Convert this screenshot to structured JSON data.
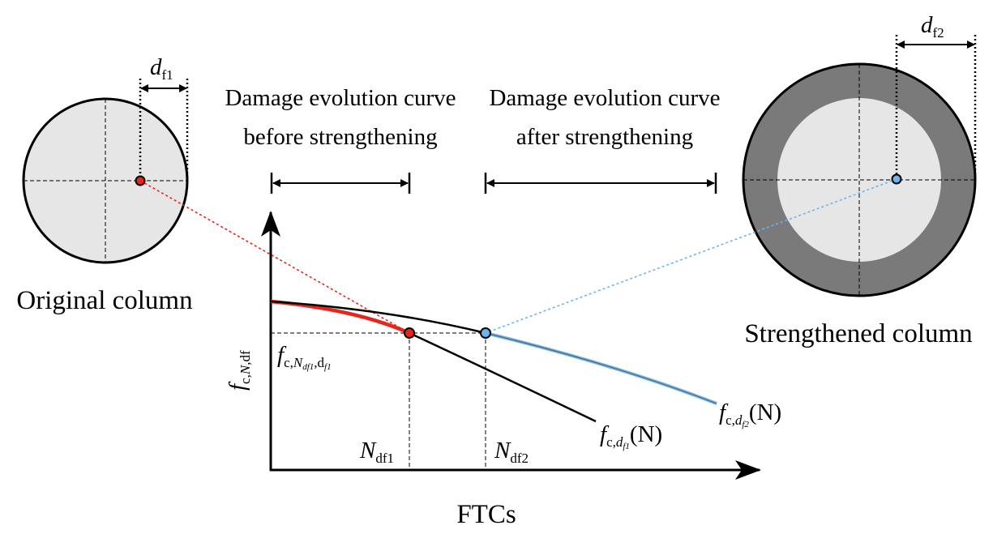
{
  "labels": {
    "left_column": "Original column",
    "right_column": "Strengthened column",
    "x_axis": "FTCs",
    "before_line1": "Damage evolution curve",
    "before_line2": "before strengthening",
    "after_line1": "Damage evolution curve",
    "after_line2": "after strengthening"
  },
  "symbols": {
    "df1": {
      "base": "d",
      "sub": "f1"
    },
    "df2": {
      "base": "d",
      "sub": "f2"
    },
    "ndf1": {
      "base": "N",
      "sub": "df1"
    },
    "ndf2": {
      "base": "N",
      "sub": "df2"
    },
    "y_axis": {
      "base": "f",
      "sub_a": "c,",
      "sub_b": "N",
      "sub_c": ",df"
    },
    "f_level": {
      "base": "f",
      "sub_a": "c,",
      "sub_b": "N",
      "sub_b_sub": "df1",
      "sub_c": ",d",
      "sub_c_sub": "f1"
    },
    "curve1": {
      "base": "f",
      "sub_a": "c,",
      "sub_b": "d",
      "sub_b_sub": "f1",
      "arg": "(N)"
    },
    "curve2": {
      "base": "f",
      "sub_a": "c,",
      "sub_b": "d",
      "sub_b_sub": "f2",
      "arg": "(N)"
    }
  },
  "colors": {
    "red": "#e8251c",
    "blue": "#6db5ee",
    "light_gray": "#e6e6e6",
    "dark_gray": "#7a7a7a",
    "black": "#000000"
  }
}
